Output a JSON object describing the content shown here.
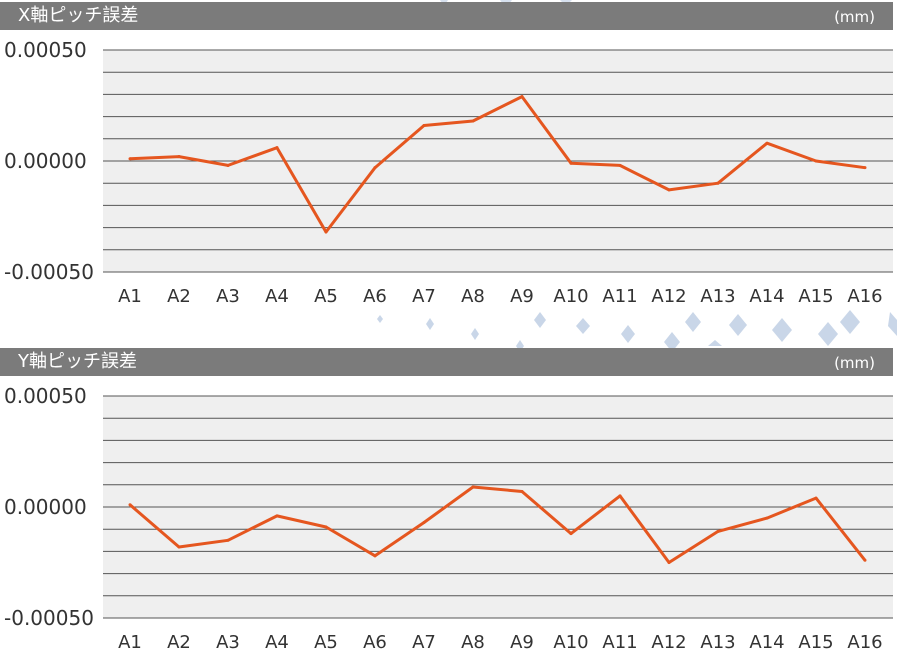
{
  "chart_data": [
    {
      "type": "line",
      "title": "X軸ピッチ誤差",
      "unit": "(mm)",
      "categories": [
        "A1",
        "A2",
        "A3",
        "A4",
        "A5",
        "A6",
        "A7",
        "A8",
        "A9",
        "A10",
        "A11",
        "A12",
        "A13",
        "A14",
        "A15",
        "A16"
      ],
      "series": [
        {
          "values": [
            1e-05,
            2e-05,
            -2e-05,
            6e-05,
            -0.00032,
            -3e-05,
            0.00016,
            0.00018,
            0.00029,
            -1e-05,
            -2e-05,
            -0.00013,
            -0.0001,
            8e-05,
            0.0,
            -3e-05
          ]
        }
      ],
      "ylim": [
        -0.0005,
        0.0005
      ],
      "yticks": [
        "0.00050",
        "0.00000",
        "-0.00050"
      ],
      "line_color": "#e5561f",
      "grid": true
    },
    {
      "type": "line",
      "title": "Y軸ピッチ誤差",
      "unit": "(mm)",
      "categories": [
        "A1",
        "A2",
        "A3",
        "A4",
        "A5",
        "A6",
        "A7",
        "A8",
        "A9",
        "A10",
        "A11",
        "A12",
        "A13",
        "A14",
        "A15",
        "A16"
      ],
      "series": [
        {
          "values": [
            1e-05,
            -0.00018,
            -0.00015,
            -4e-05,
            -9e-05,
            -0.00022,
            -7e-05,
            9e-05,
            7e-05,
            -0.00012,
            5e-05,
            -0.00025,
            -0.00011,
            -5e-05,
            4e-05,
            -0.00024
          ]
        }
      ],
      "ylim": [
        -0.0005,
        0.0005
      ],
      "yticks": [
        "0.00050",
        "0.00000",
        "-0.00050"
      ],
      "line_color": "#e5561f",
      "grid": true
    }
  ],
  "colors": {
    "header_bg": "#7b7b7b",
    "plot_bg": "#efefef",
    "line": "#e5561f",
    "grid": "#555555",
    "decoration": "#c9d6e8"
  }
}
